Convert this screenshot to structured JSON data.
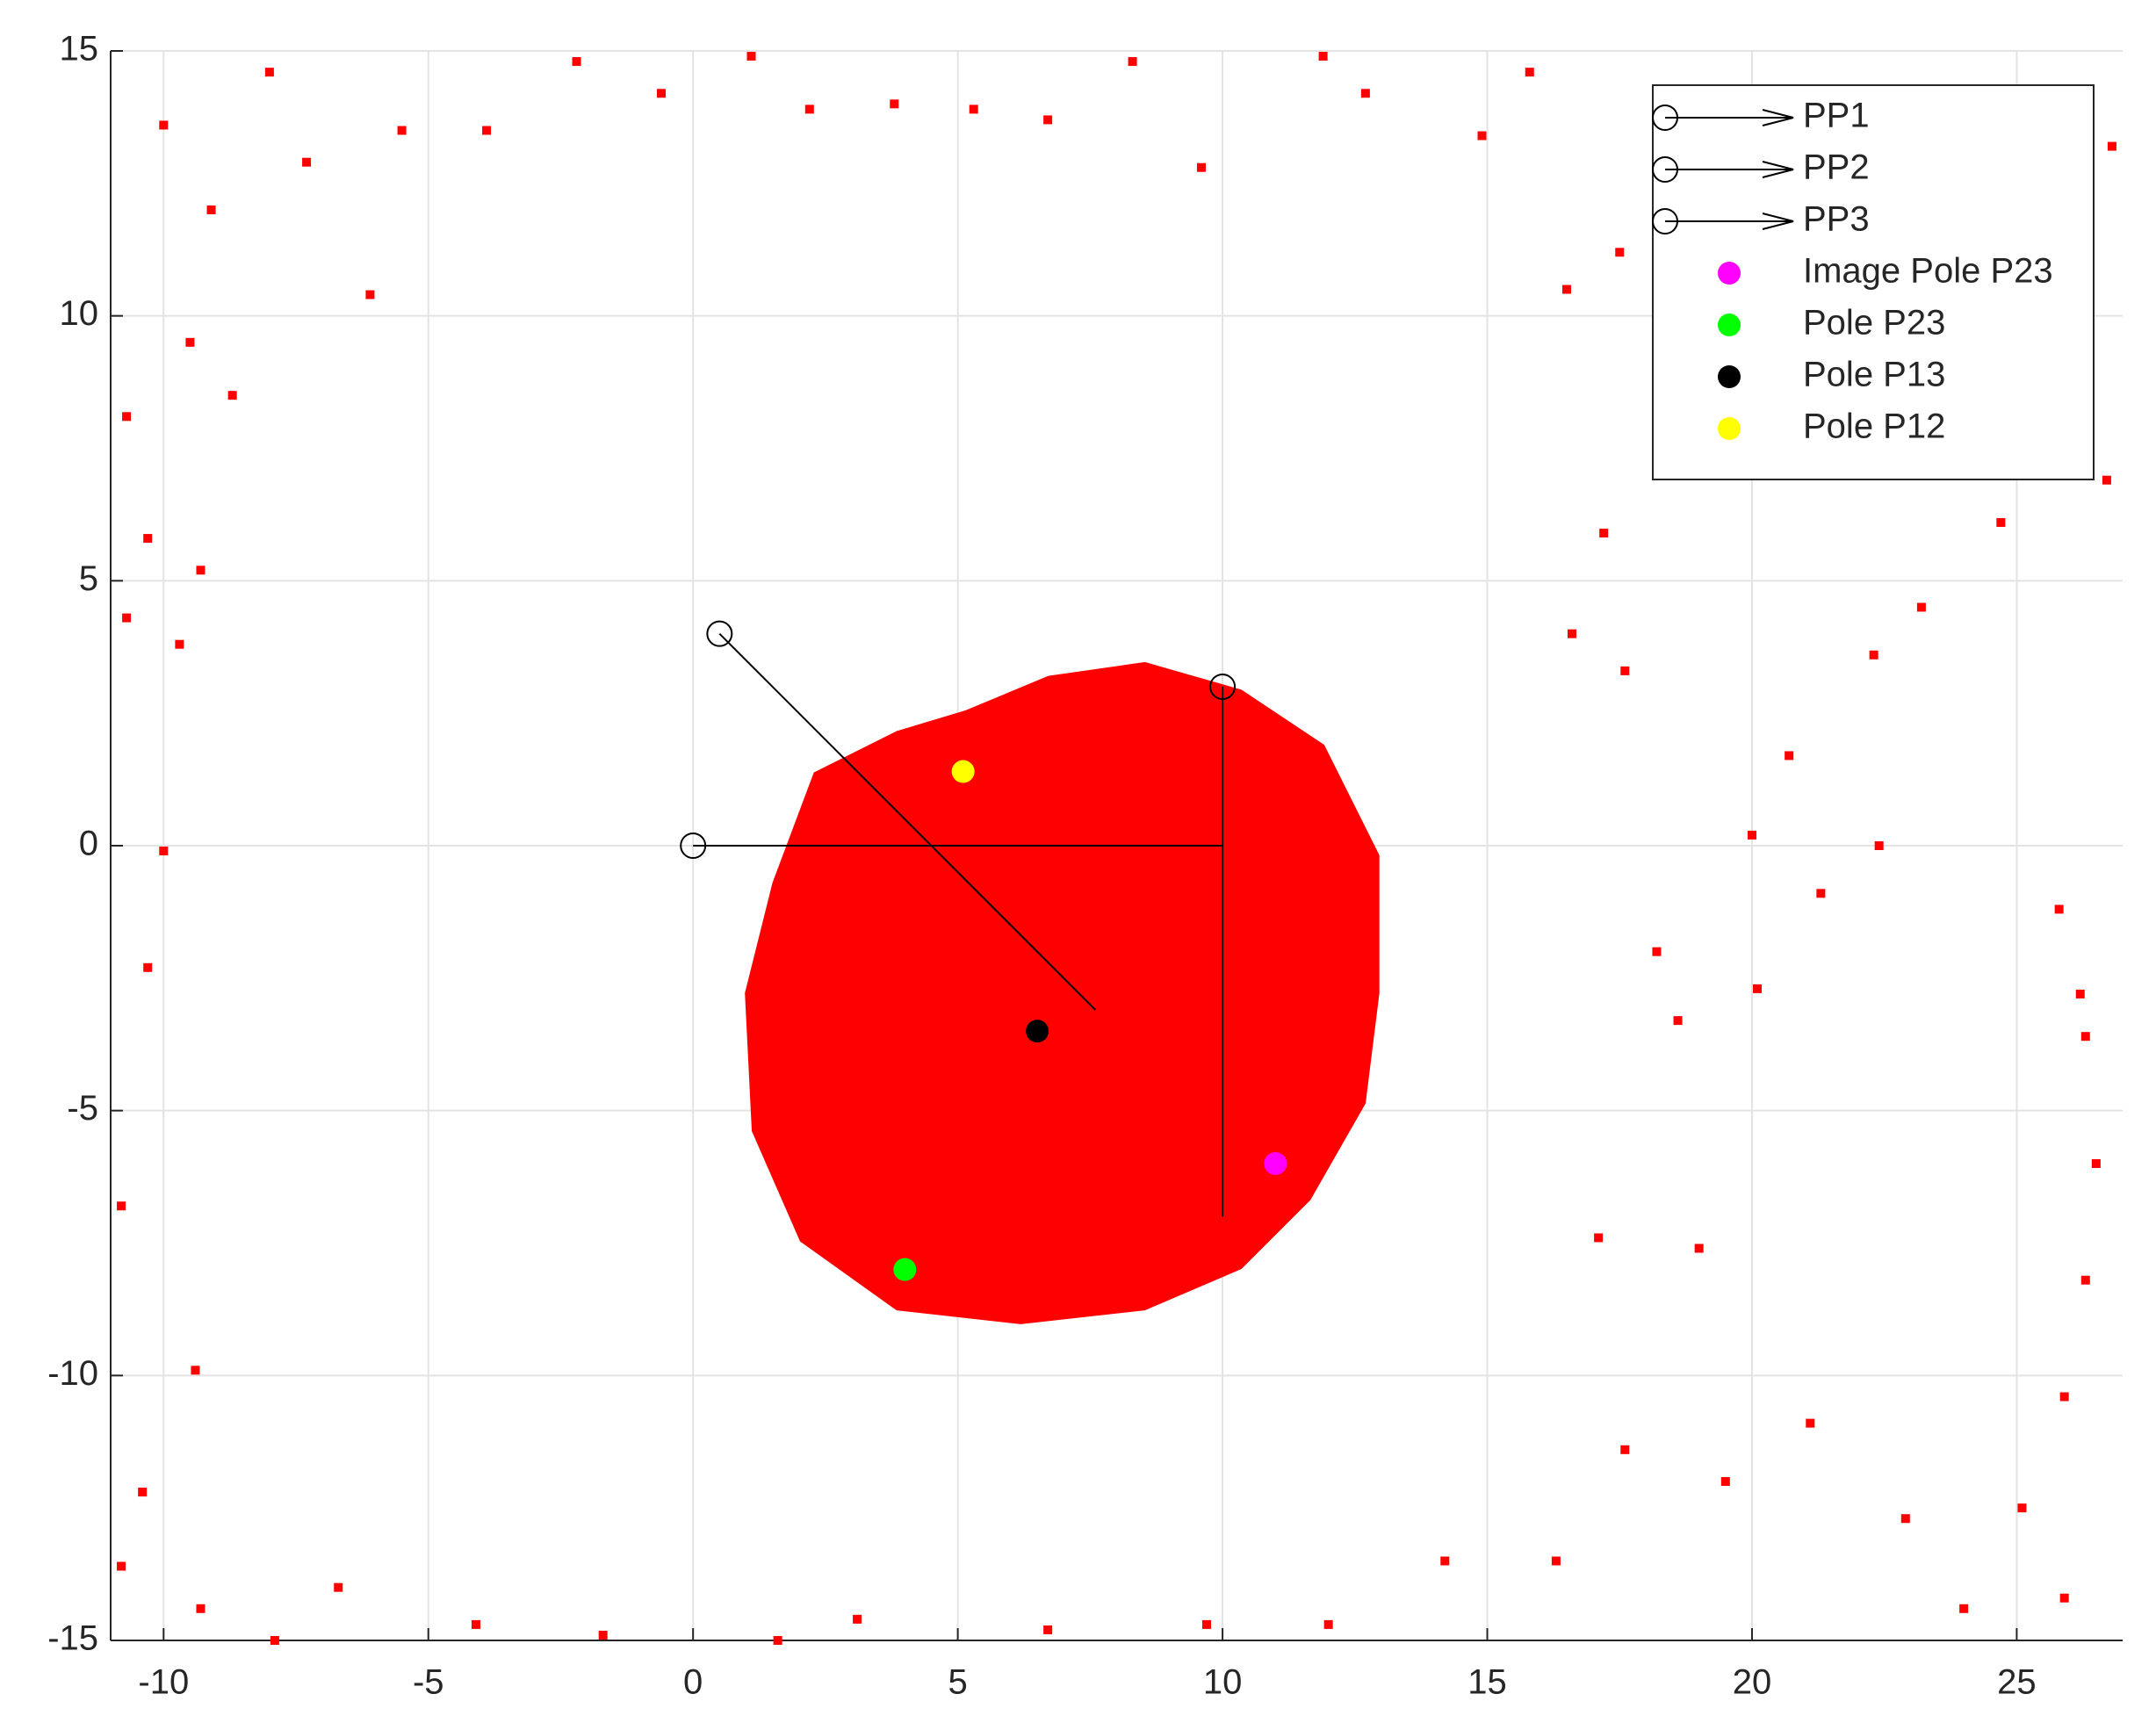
{
  "chart_data": {
    "type": "scatter",
    "xlim": [
      -11,
      27
    ],
    "ylim": [
      -15,
      15
    ],
    "xticks": [
      -10,
      -5,
      0,
      5,
      10,
      15,
      20,
      25
    ],
    "yticks": [
      -15,
      -10,
      -5,
      0,
      5,
      10,
      15
    ],
    "grid": true,
    "legend": "northeast",
    "series": [
      {
        "kind": "points",
        "color": "#ff0000",
        "x": [
          -10.0,
          -8.0,
          -9.1,
          -7.3,
          -5.5,
          -3.9,
          -2.2,
          -0.6,
          1.1,
          2.2,
          3.8,
          5.3,
          6.7,
          8.3,
          9.6,
          11.9,
          12.7,
          15.8,
          14.9,
          26.8,
          26.7,
          24.7,
          23.2,
          22.3,
          20.7,
          20.0,
          22.4,
          25.8,
          21.3,
          26.2,
          26.3,
          26.5,
          26.3,
          25.9,
          25.1,
          25.9,
          24.0,
          22.9,
          21.1,
          19.5,
          17.6,
          16.3,
          14.2,
          12.0,
          9.7,
          6.7,
          3.1,
          1.6,
          -1.7,
          -4.1,
          -6.7,
          -7.9,
          -9.3,
          -10.8,
          -10.4,
          -9.4,
          -10.8,
          -10.3,
          -10.0,
          -10.7,
          -9.7,
          -10.3,
          -9.3,
          -10.7,
          -9.5,
          -8.7,
          -6.1,
          17.5,
          16.5,
          17.2,
          17.6,
          16.6,
          18.2,
          18.6,
          20.1,
          19.0,
          17.1
        ],
        "y": [
          13.6,
          14.6,
          12.0,
          12.9,
          13.5,
          13.5,
          14.8,
          14.2,
          14.9,
          13.9,
          14.0,
          13.9,
          13.7,
          14.8,
          12.8,
          14.9,
          14.2,
          14.6,
          13.4,
          13.2,
          6.9,
          6.1,
          4.5,
          3.6,
          1.7,
          0.2,
          0.0,
          -1.2,
          -0.9,
          -2.8,
          -3.6,
          -6.0,
          -8.2,
          -10.4,
          -12.5,
          -14.2,
          -14.4,
          -12.7,
          -10.9,
          -12.0,
          -11.4,
          -13.5,
          -13.5,
          -14.7,
          -14.7,
          -14.8,
          -14.6,
          -15.0,
          -14.9,
          -14.7,
          -14.0,
          -15.0,
          -14.4,
          -13.6,
          -12.2,
          -9.9,
          -6.8,
          -2.3,
          -0.1,
          4.3,
          3.8,
          5.8,
          5.2,
          8.1,
          9.5,
          8.5,
          10.4,
          11.2,
          10.5,
          5.9,
          3.3,
          4.0,
          -2.0,
          -3.3,
          -2.7,
          -7.6,
          -7.4
        ]
      },
      {
        "kind": "quiver",
        "name": "PP1",
        "color": "#000000",
        "x": [
          0.5,
          7.6
        ],
        "y": [
          4.0,
          -3.1
        ]
      },
      {
        "kind": "quiver",
        "name": "PP2",
        "color": "#000000",
        "x": [
          0,
          10
        ],
        "y": [
          0,
          0
        ]
      },
      {
        "kind": "quiver",
        "name": "PP3",
        "color": "#000000",
        "x": [
          10,
          10
        ],
        "y": [
          3,
          -7
        ]
      },
      {
        "kind": "dot",
        "name": "Image Pole P23",
        "color": "#ff00ff",
        "x": [
          11
        ],
        "y": [
          -6
        ]
      },
      {
        "kind": "dot",
        "name": "Pole P23",
        "color": "#00ff00",
        "x": [
          4
        ],
        "y": [
          -8
        ]
      },
      {
        "kind": "dot",
        "name": "Pole P13",
        "color": "#000000",
        "x": [
          6.5
        ],
        "y": [
          -3.5
        ]
      },
      {
        "kind": "dot",
        "name": "Pole P12",
        "color": "#ffff00",
        "x": [
          5.1
        ],
        "y": [
          1.4
        ]
      }
    ]
  }
}
